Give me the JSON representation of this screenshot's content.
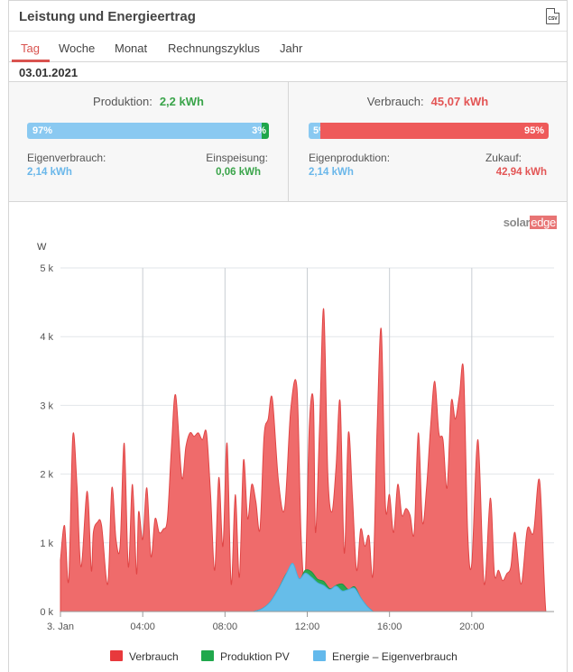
{
  "header": {
    "title": "Leistung und Energieertrag",
    "csv_label": "CSV"
  },
  "tabs": [
    "Tag",
    "Woche",
    "Monat",
    "Rechnungszyklus",
    "Jahr"
  ],
  "date": "03.01.2021",
  "production": {
    "label": "Produktion:",
    "value": "2,2 kWh",
    "self_pct": 97,
    "self_pct_label": "97%",
    "feed_pct": 3,
    "feed_pct_label": "3%",
    "self_label": "Eigenverbrauch:",
    "self_value": "2,14 kWh",
    "feed_label": "Einspeisung:",
    "feed_value": "0,06 kWh"
  },
  "consumption": {
    "label": "Verbrauch:",
    "value": "45,07 kWh",
    "own_pct": 5,
    "own_pct_label": "5%",
    "buy_pct": 95,
    "buy_pct_label": "95%",
    "own_label": "Eigenproduktion:",
    "own_value": "2,14 kWh",
    "buy_label": "Zukauf:",
    "buy_value": "42,94 kWh"
  },
  "brand": {
    "part1": "solar",
    "part2": "edge"
  },
  "colors": {
    "consumption": "#ee5a5a",
    "production": "#1fa64a",
    "self_consumption": "#63b9ec",
    "accent": "#d9534f"
  },
  "chart_data": {
    "type": "area",
    "ylabel": "W",
    "ylim": [
      0,
      5000
    ],
    "yticks": [
      0,
      1000,
      2000,
      3000,
      4000,
      5000
    ],
    "ytick_labels": [
      "0 k",
      "1 k",
      "2 k",
      "3 k",
      "4 k",
      "5 k"
    ],
    "xlim": [
      0,
      24
    ],
    "xticks": [
      0,
      4,
      8,
      12,
      16,
      20
    ],
    "xtick_labels": [
      "3. Jan",
      "04:00",
      "08:00",
      "12:00",
      "16:00",
      "20:00"
    ],
    "grid": true,
    "legend_position": "bottom",
    "series": [
      {
        "name": "Verbrauch",
        "x": [
          0,
          0.2,
          0.4,
          0.6,
          0.8,
          1.0,
          1.3,
          1.5,
          1.6,
          1.8,
          2.0,
          2.3,
          2.5,
          2.7,
          2.9,
          3.1,
          3.3,
          3.5,
          3.7,
          3.8,
          4.0,
          4.2,
          4.4,
          4.6,
          4.8,
          5.0,
          5.2,
          5.4,
          5.6,
          5.9,
          6.1,
          6.3,
          6.5,
          6.7,
          6.9,
          7.1,
          7.3,
          7.5,
          7.7,
          7.9,
          8.1,
          8.3,
          8.5,
          8.7,
          8.9,
          9.1,
          9.3,
          9.5,
          9.7,
          9.9,
          10.1,
          10.3,
          10.6,
          10.9,
          11.2,
          11.5,
          11.7,
          11.9,
          12.1,
          12.3,
          12.4,
          12.6,
          12.8,
          13.0,
          13.2,
          13.4,
          13.6,
          13.8,
          14.0,
          14.2,
          14.4,
          14.6,
          14.8,
          15.0,
          15.2,
          15.4,
          15.6,
          15.8,
          16.0,
          16.2,
          16.4,
          16.6,
          16.8,
          17.0,
          17.2,
          17.4,
          17.6,
          17.8,
          18.0,
          18.2,
          18.4,
          18.6,
          18.8,
          19.0,
          19.2,
          19.4,
          19.6,
          19.8,
          20.0,
          20.3,
          20.6,
          20.9,
          21.1,
          21.3,
          21.5,
          21.7,
          21.9,
          22.1,
          22.4,
          22.7,
          23.0,
          23.3,
          23.6,
          23.9
        ],
        "values": [
          750,
          1250,
          450,
          2550,
          1850,
          650,
          1750,
          600,
          1150,
          1300,
          1250,
          400,
          1800,
          1050,
          950,
          2450,
          650,
          1850,
          550,
          1450,
          1050,
          1800,
          800,
          1350,
          1150,
          1200,
          1350,
          2400,
          3150,
          1950,
          2400,
          2600,
          2550,
          2600,
          2500,
          2600,
          1700,
          600,
          1950,
          950,
          2450,
          400,
          1700,
          500,
          2200,
          1350,
          1850,
          1600,
          1200,
          2550,
          2800,
          3100,
          1900,
          1500,
          2950,
          3250,
          1100,
          500,
          2700,
          3050,
          1150,
          2700,
          4400,
          2000,
          1450,
          2100,
          3050,
          850,
          2600,
          1650,
          600,
          1200,
          950,
          1100,
          550,
          2700,
          4100,
          1550,
          1700,
          1150,
          1850,
          1400,
          1500,
          1400,
          1150,
          2600,
          1300,
          1800,
          2700,
          3350,
          2600,
          2500,
          1800,
          3050,
          2800,
          3150,
          3500,
          1150,
          700,
          2500,
          400,
          1650,
          550,
          600,
          450,
          550,
          650,
          1150,
          400,
          1200,
          1150,
          1900,
          0,
          0
        ]
      },
      {
        "name": "Produktion PV",
        "x": [
          9.4,
          9.8,
          10.2,
          10.6,
          11.0,
          11.3,
          11.6,
          11.9,
          12.2,
          12.5,
          12.8,
          13.1,
          13.4,
          13.7,
          14.0,
          14.3,
          14.6,
          14.9,
          15.2
        ],
        "values": [
          0,
          40,
          140,
          330,
          560,
          600,
          450,
          600,
          580,
          470,
          440,
          330,
          380,
          400,
          320,
          360,
          200,
          80,
          0
        ]
      },
      {
        "name": "Energie – Eigenverbrauch",
        "x": [
          9.4,
          9.8,
          10.2,
          10.6,
          11.0,
          11.3,
          11.6,
          11.9,
          12.2,
          12.5,
          12.8,
          13.1,
          13.4,
          13.7,
          14.0,
          14.3,
          14.6,
          14.9,
          15.2
        ],
        "values": [
          0,
          40,
          140,
          330,
          560,
          700,
          480,
          560,
          500,
          420,
          380,
          320,
          370,
          300,
          320,
          340,
          200,
          80,
          0
        ]
      }
    ]
  }
}
